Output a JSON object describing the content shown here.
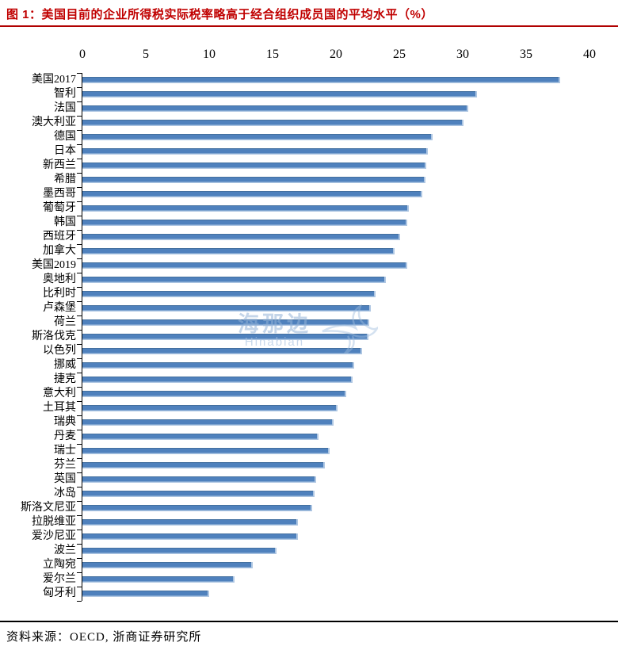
{
  "figure": {
    "title": "图 1：美国目前的企业所得税实际税率略高于经合组织成员国的平均水平（%）",
    "source": "资料来源：OECD, 浙商证券研究所"
  },
  "watermark": {
    "text": "海那边",
    "subtext": "Hinabian"
  },
  "colors": {
    "bar": "#4f81bd",
    "bar_edge": "#aec6e2",
    "title_red": "#c00000",
    "axis_black": "#000000"
  },
  "chart_data": {
    "type": "bar",
    "orientation": "horizontal",
    "title": "美国目前的企业所得税实际税率略高于经合组织成员国的平均水平（%）",
    "xlabel": "",
    "ylabel": "",
    "xlim": [
      0,
      40
    ],
    "x_ticks": [
      0,
      5,
      10,
      15,
      20,
      25,
      30,
      35,
      40
    ],
    "grid": false,
    "legend": false,
    "bar_color": "#4f81bd",
    "categories": [
      "美国2017",
      "智利",
      "法国",
      "澳大利亚",
      "德国",
      "日本",
      "新西兰",
      "希腊",
      "墨西哥",
      "葡萄牙",
      "韩国",
      "西班牙",
      "加拿大",
      "美国2019",
      "奥地利",
      "比利时",
      "卢森堡",
      "荷兰",
      "斯洛伐克",
      "以色列",
      "挪威",
      "捷克",
      "意大利",
      "土耳其",
      "瑞典",
      "丹麦",
      "瑞士",
      "芬兰",
      "英国",
      "冰岛",
      "斯洛文尼亚",
      "拉脱维亚",
      "爱沙尼亚",
      "波兰",
      "立陶宛",
      "爱尔兰",
      "匈牙利"
    ],
    "values": [
      37.6,
      31.1,
      30.4,
      30.0,
      27.6,
      27.2,
      27.1,
      27.0,
      26.8,
      25.7,
      25.6,
      25.0,
      24.6,
      25.6,
      23.9,
      23.1,
      22.7,
      22.6,
      22.5,
      22.0,
      21.4,
      21.3,
      20.8,
      20.1,
      19.8,
      18.6,
      19.5,
      19.1,
      18.4,
      18.3,
      18.1,
      17.0,
      17.0,
      15.3,
      13.4,
      12.0,
      10.0
    ]
  }
}
